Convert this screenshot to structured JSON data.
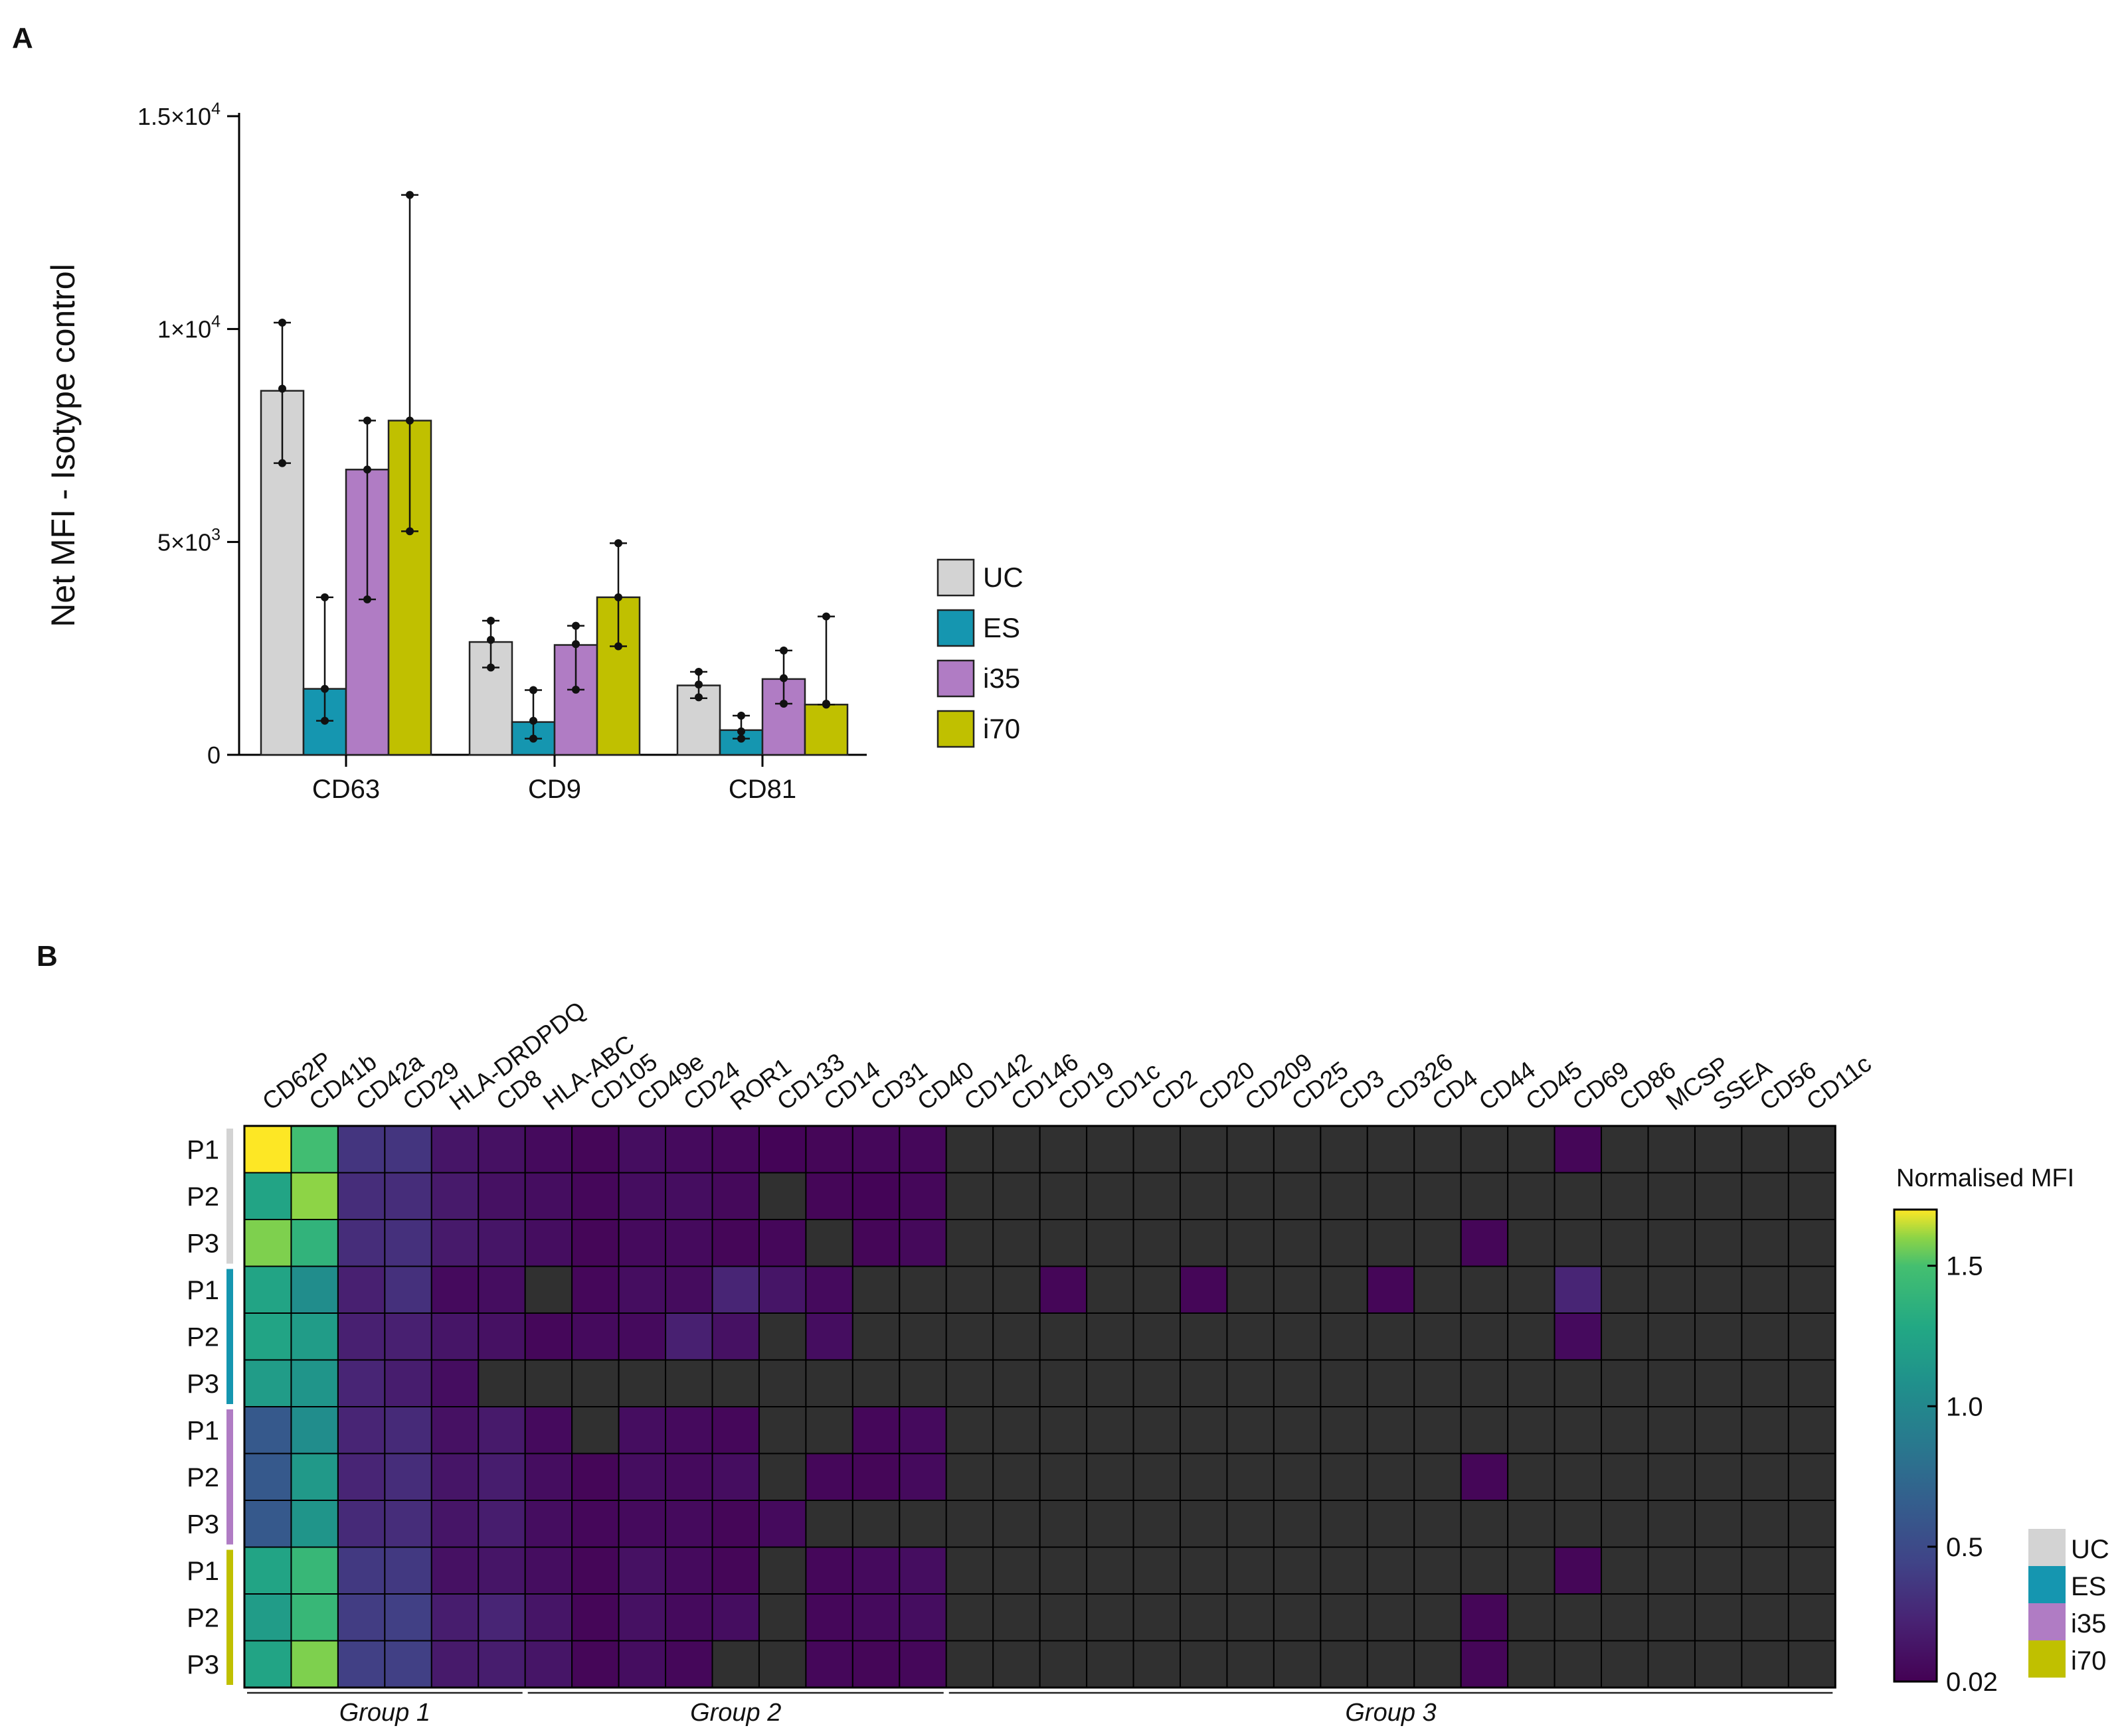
{
  "panels": {
    "a_label": "A",
    "b_label": "B"
  },
  "chart_data": [
    {
      "type": "bar",
      "panel": "A",
      "categories": [
        "CD63",
        "CD9",
        "CD81"
      ],
      "ylabel": "Net MFI - Isotype control",
      "xlabel": "",
      "ylim": [
        0,
        15000
      ],
      "yticks": [
        {
          "value": 0,
          "label": "0"
        },
        {
          "value": 5000,
          "label": "5×10",
          "exp": "3"
        },
        {
          "value": 10000,
          "label": "1×10",
          "exp": "4"
        },
        {
          "value": 15000,
          "label": "1.5×10",
          "exp": "4"
        }
      ],
      "series": [
        {
          "name": "UC",
          "color": "#d3d3d3",
          "values": [
            8550,
            2650,
            1630
          ],
          "error_low": [
            6850,
            2050,
            1330
          ],
          "error_high": [
            10150,
            3150,
            1950
          ],
          "points": [
            [
              6850,
              8600,
              10150
            ],
            [
              2050,
              2700,
              3150
            ],
            [
              1350,
              1650,
              1950
            ]
          ]
        },
        {
          "name": "ES",
          "color": "#1596b0",
          "values": [
            1550,
            770,
            580
          ],
          "error_low": [
            800,
            380,
            380
          ],
          "error_high": [
            3700,
            1520,
            920
          ],
          "points": [
            [
              800,
              1550,
              3700
            ],
            [
              380,
              800,
              1520
            ],
            [
              380,
              550,
              920
            ]
          ]
        },
        {
          "name": "i35",
          "color": "#b07cc4",
          "values": [
            6700,
            2580,
            1780
          ],
          "error_low": [
            3650,
            1530,
            1200
          ],
          "error_high": [
            7850,
            3030,
            2450
          ],
          "points": [
            [
              3650,
              6700,
              7850
            ],
            [
              1530,
              2600,
              3030
            ],
            [
              1200,
              1800,
              2450
            ]
          ]
        },
        {
          "name": "i70",
          "color": "#c0c000",
          "values": [
            7850,
            3700,
            1180
          ],
          "error_low": [
            5250,
            2550,
            1180
          ],
          "error_high": [
            13150,
            4970,
            3250
          ],
          "points": [
            [
              5250,
              7850,
              13150
            ],
            [
              2550,
              3700,
              4970
            ],
            [
              1180,
              1200,
              3250
            ]
          ]
        }
      ],
      "legend": [
        "UC",
        "ES",
        "i35",
        "i70"
      ],
      "legend_position": "right"
    },
    {
      "type": "heatmap",
      "panel": "B",
      "columns": [
        "CD62P",
        "CD41b",
        "CD42a",
        "CD29",
        "HLA-DRDPDQ",
        "CD8",
        "HLA-ABC",
        "CD105",
        "CD49e",
        "CD24",
        "ROR1",
        "CD133",
        "CD14",
        "CD31",
        "CD40",
        "CD142",
        "CD146",
        "CD19",
        "CD1c",
        "CD2",
        "CD20",
        "CD209",
        "CD25",
        "CD3",
        "CD326",
        "CD4",
        "CD44",
        "CD45",
        "CD69",
        "CD86",
        "MCSP",
        "SSEA",
        "CD56",
        "CD11c"
      ],
      "row_labels": [
        "P1",
        "P2",
        "P3",
        "P1",
        "P2",
        "P3",
        "P1",
        "P2",
        "P3",
        "P1",
        "P2",
        "P3"
      ],
      "row_groups": [
        "UC",
        "UC",
        "UC",
        "ES",
        "ES",
        "ES",
        "i35",
        "i35",
        "i35",
        "i70",
        "i70",
        "i70"
      ],
      "na_color": "#303030",
      "values": [
        [
          1.7,
          1.48,
          0.35,
          0.35,
          0.15,
          0.12,
          0.08,
          0.05,
          0.1,
          0.08,
          0.06,
          0.04,
          0.05,
          0.06,
          0.06,
          null,
          null,
          null,
          null,
          null,
          null,
          null,
          null,
          null,
          null,
          null,
          null,
          null,
          0.05,
          null,
          null,
          null,
          null,
          null
        ],
        [
          1.25,
          1.6,
          0.3,
          0.3,
          0.18,
          0.12,
          0.1,
          0.06,
          0.1,
          0.1,
          0.07,
          null,
          0.05,
          0.04,
          0.06,
          null,
          null,
          null,
          null,
          null,
          null,
          null,
          null,
          null,
          null,
          null,
          null,
          null,
          null,
          null,
          null,
          null,
          null,
          null
        ],
        [
          1.58,
          1.38,
          0.3,
          0.32,
          0.18,
          0.15,
          0.1,
          0.05,
          0.08,
          0.08,
          0.05,
          0.06,
          null,
          0.05,
          0.07,
          null,
          null,
          null,
          null,
          null,
          null,
          null,
          null,
          null,
          null,
          null,
          0.05,
          null,
          null,
          null,
          null,
          null,
          null,
          null
        ],
        [
          1.25,
          1.05,
          0.22,
          0.32,
          0.08,
          0.1,
          null,
          0.06,
          0.1,
          0.09,
          0.25,
          0.15,
          0.08,
          null,
          null,
          null,
          null,
          0.05,
          null,
          null,
          0.05,
          null,
          null,
          null,
          0.05,
          null,
          null,
          null,
          0.25,
          null,
          null,
          null,
          null,
          null
        ],
        [
          1.25,
          1.18,
          0.22,
          0.22,
          0.15,
          0.12,
          0.06,
          0.08,
          0.08,
          0.22,
          0.12,
          null,
          0.1,
          null,
          null,
          null,
          null,
          null,
          null,
          null,
          null,
          null,
          null,
          null,
          null,
          null,
          null,
          null,
          0.08,
          null,
          null,
          null,
          null,
          null
        ],
        [
          1.18,
          1.12,
          0.25,
          0.2,
          0.1,
          null,
          null,
          null,
          null,
          null,
          null,
          null,
          null,
          null,
          null,
          null,
          null,
          null,
          null,
          null,
          null,
          null,
          null,
          null,
          null,
          null,
          null,
          null,
          null,
          null,
          null,
          null,
          null,
          null
        ],
        [
          0.62,
          1.05,
          0.25,
          0.28,
          0.12,
          0.18,
          0.08,
          null,
          0.1,
          0.08,
          0.06,
          null,
          null,
          0.06,
          0.08,
          null,
          null,
          null,
          null,
          null,
          null,
          null,
          null,
          null,
          null,
          null,
          null,
          null,
          null,
          null,
          null,
          null,
          null,
          null
        ],
        [
          0.62,
          1.15,
          0.25,
          0.3,
          0.15,
          0.2,
          0.1,
          0.05,
          0.1,
          0.08,
          0.1,
          null,
          0.06,
          0.05,
          0.08,
          null,
          null,
          null,
          null,
          null,
          null,
          null,
          null,
          null,
          null,
          null,
          0.05,
          null,
          null,
          null,
          null,
          null,
          null,
          null
        ],
        [
          0.62,
          1.12,
          0.28,
          0.3,
          0.15,
          0.2,
          0.1,
          0.06,
          0.08,
          0.08,
          0.05,
          0.08,
          null,
          null,
          null,
          null,
          null,
          null,
          null,
          null,
          null,
          null,
          null,
          null,
          null,
          null,
          null,
          null,
          null,
          null,
          null,
          null,
          null,
          null
        ],
        [
          1.25,
          1.42,
          0.38,
          0.38,
          0.12,
          0.15,
          0.1,
          0.05,
          0.12,
          0.08,
          0.05,
          null,
          0.06,
          0.08,
          0.1,
          null,
          null,
          null,
          null,
          null,
          null,
          null,
          null,
          null,
          null,
          null,
          null,
          null,
          0.05,
          null,
          null,
          null,
          null,
          null
        ],
        [
          1.18,
          1.42,
          0.4,
          0.42,
          0.2,
          0.25,
          0.15,
          0.05,
          0.12,
          0.08,
          0.1,
          null,
          0.06,
          0.08,
          0.1,
          null,
          null,
          null,
          null,
          null,
          null,
          null,
          null,
          null,
          null,
          null,
          0.05,
          null,
          null,
          null,
          null,
          null,
          null,
          null
        ],
        [
          1.25,
          1.58,
          0.42,
          0.42,
          0.18,
          0.2,
          0.15,
          0.05,
          0.1,
          0.06,
          null,
          null,
          0.06,
          0.05,
          0.06,
          null,
          null,
          null,
          null,
          null,
          null,
          null,
          null,
          null,
          null,
          null,
          0.05,
          null,
          null,
          null,
          null,
          null,
          null,
          null
        ]
      ],
      "colorbar": {
        "title": "Normalised MFI",
        "min": 0.02,
        "max": 1.7,
        "ticks": [
          {
            "value": 0.02,
            "label": "0.02"
          },
          {
            "value": 0.5,
            "label": "0.5"
          },
          {
            "value": 1.0,
            "label": "1.0"
          },
          {
            "value": 1.5,
            "label": "1.5"
          }
        ]
      },
      "column_groups": [
        {
          "label": "Group 1",
          "start": 0,
          "end": 5
        },
        {
          "label": "Group 2",
          "start": 6,
          "end": 14
        },
        {
          "label": "Group 3",
          "start": 15,
          "end": 33
        }
      ],
      "legend": [
        {
          "name": "UC",
          "color": "#d3d3d3"
        },
        {
          "name": "ES",
          "color": "#1596b0"
        },
        {
          "name": "i35",
          "color": "#b07cc4"
        },
        {
          "name": "i70",
          "color": "#c0c000"
        }
      ]
    }
  ]
}
